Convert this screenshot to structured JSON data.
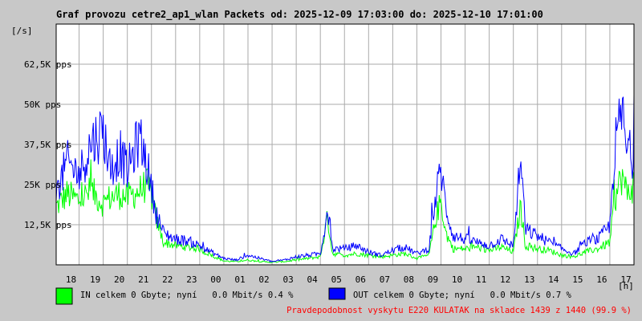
{
  "chart_data": {
    "type": "line",
    "title": "Graf provozu cetre2_ap1_wlan Packets od: 2025-12-09 17:03:00 do: 2025-12-10 17:01:00",
    "ylabel": "[/s]",
    "xlabel": "[h]",
    "ylim": [
      0,
      75000
    ],
    "y_ticks": [
      {
        "value": 12500,
        "label": "12,5K pps"
      },
      {
        "value": 25000,
        "label": "25K pps"
      },
      {
        "value": 37500,
        "label": "37,5K pps"
      },
      {
        "value": 50000,
        "label": "50K pps"
      },
      {
        "value": 62500,
        "label": "62,5K pps"
      }
    ],
    "x_range": [
      17.05,
      41.0
    ],
    "x_ticks": [
      {
        "value": 18,
        "label": "18"
      },
      {
        "value": 19,
        "label": "19"
      },
      {
        "value": 20,
        "label": "20"
      },
      {
        "value": 21,
        "label": "21"
      },
      {
        "value": 22,
        "label": "22"
      },
      {
        "value": 23,
        "label": "23"
      },
      {
        "value": 24,
        "label": "00"
      },
      {
        "value": 25,
        "label": "01"
      },
      {
        "value": 26,
        "label": "02"
      },
      {
        "value": 27,
        "label": "03"
      },
      {
        "value": 28,
        "label": "04"
      },
      {
        "value": 29,
        "label": "05"
      },
      {
        "value": 30,
        "label": "06"
      },
      {
        "value": 31,
        "label": "07"
      },
      {
        "value": 32,
        "label": "08"
      },
      {
        "value": 33,
        "label": "09"
      },
      {
        "value": 34,
        "label": "10"
      },
      {
        "value": 35,
        "label": "11"
      },
      {
        "value": 36,
        "label": "12"
      },
      {
        "value": 37,
        "label": "13"
      },
      {
        "value": 38,
        "label": "14"
      },
      {
        "value": 39,
        "label": "15"
      },
      {
        "value": 40,
        "label": "16"
      },
      {
        "value": 41,
        "label": "17"
      }
    ],
    "grid": true,
    "series": [
      {
        "name": "IN",
        "color": "#00ff00",
        "x": [
          17.05,
          17.5,
          18.0,
          18.5,
          19.0,
          19.3,
          19.7,
          20.0,
          20.5,
          20.8,
          21.0,
          21.2,
          21.5,
          22.0,
          22.5,
          23.0,
          23.2,
          24.0,
          24.5,
          25.0,
          25.5,
          26.0,
          26.5,
          27.0,
          27.5,
          28.0,
          28.3,
          28.5,
          29.0,
          29.5,
          30.0,
          30.5,
          31.0,
          31.5,
          32.0,
          32.5,
          32.8,
          33.0,
          33.2,
          33.5,
          34.0,
          34.5,
          35.0,
          35.5,
          36.0,
          36.3,
          36.5,
          37.0,
          37.5,
          38.0,
          38.5,
          39.0,
          39.5,
          40.0,
          40.2,
          40.5,
          40.7,
          41.0
        ],
        "y": [
          18000,
          22000,
          20000,
          23000,
          19000,
          21000,
          22000,
          21000,
          23000,
          25000,
          22000,
          14000,
          7000,
          6000,
          5500,
          5000,
          4000,
          1200,
          1000,
          1500,
          1000,
          800,
          1000,
          1500,
          2000,
          2500,
          15000,
          3500,
          3000,
          3500,
          3000,
          2500,
          3000,
          3500,
          2000,
          3000,
          15000,
          20000,
          10000,
          5000,
          5000,
          5500,
          4500,
          5500,
          4000,
          18000,
          6000,
          5000,
          4500,
          3000,
          2500,
          4000,
          5000,
          7000,
          20000,
          28000,
          22000,
          25000
        ]
      },
      {
        "name": "OUT",
        "color": "#0000ff",
        "x": [
          17.05,
          17.5,
          18.0,
          18.5,
          19.0,
          19.3,
          19.7,
          20.0,
          20.5,
          20.8,
          21.0,
          21.2,
          21.5,
          22.0,
          22.5,
          23.0,
          23.2,
          24.0,
          24.5,
          25.0,
          25.5,
          26.0,
          26.5,
          27.0,
          27.5,
          28.0,
          28.3,
          28.5,
          29.0,
          29.5,
          30.0,
          30.5,
          31.0,
          31.5,
          32.0,
          32.5,
          32.8,
          33.0,
          33.2,
          33.5,
          34.0,
          34.5,
          35.0,
          35.5,
          36.0,
          36.3,
          36.5,
          37.0,
          37.5,
          38.0,
          38.5,
          39.0,
          39.5,
          40.0,
          40.2,
          40.5,
          40.7,
          41.0
        ],
        "y": [
          22000,
          32000,
          28000,
          38000,
          42000,
          30000,
          35000,
          29000,
          40000,
          32000,
          24000,
          16000,
          10000,
          8000,
          7500,
          6000,
          5000,
          2000,
          1500,
          3000,
          2000,
          1000,
          1500,
          2500,
          3000,
          3500,
          17000,
          5000,
          5000,
          6000,
          4000,
          3000,
          4500,
          5500,
          3500,
          5000,
          22000,
          30000,
          18000,
          9000,
          8000,
          7000,
          6000,
          8000,
          6000,
          33000,
          11000,
          9000,
          7000,
          5000,
          3500,
          7000,
          8000,
          12000,
          36000,
          48000,
          35000,
          34000
        ]
      }
    ]
  },
  "legend": {
    "in": {
      "color": "#00ff00",
      "text": "IN celkem 0 Gbyte; nyní   0.0 Mbit/s 0.4 %"
    },
    "out": {
      "color": "#0000ff",
      "text": "OUT celkem 0 Gbyte; nyní   0.0 Mbit/s 0.7 %"
    }
  },
  "footer_note": "Pravdepodobnost vyskytu E220 KULATAK na skladce 1439 z 1440 (99.9 %)",
  "colors": {
    "background": "#c8c8c8",
    "plot_background": "#ffffff",
    "grid": "#aaaaaa",
    "footer": "#ff0000"
  }
}
